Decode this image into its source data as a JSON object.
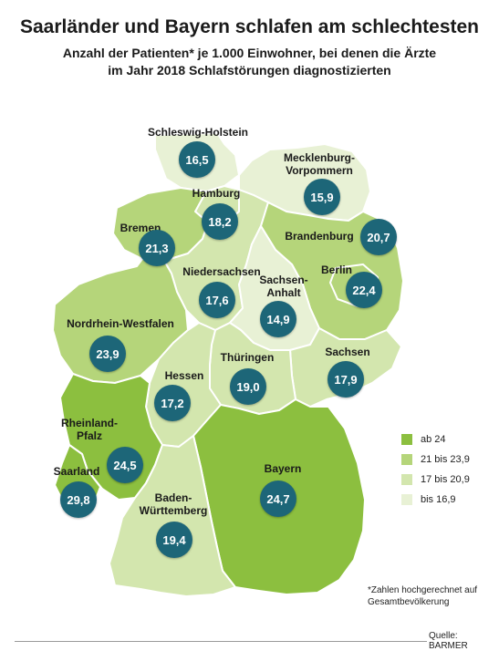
{
  "title": "Saarländer und Bayern schlafen am schlechtesten",
  "subtitle_line1": "Anzahl der Patienten* je 1.000 Einwohner, bei denen die Ärzte",
  "subtitle_line2": "im Jahr 2018 Schlafstörungen diagnostizierten",
  "colors": {
    "ab_24": "#8cbf3f",
    "21_bis_23_9": "#b5d57a",
    "17_bis_20_9": "#d3e6ae",
    "bis_16_9": "#e8f1d5",
    "bubble": "#1d6678"
  },
  "states": {
    "schleswig_holstein": {
      "name": "Schleswig-Holstein",
      "value": "16,5"
    },
    "mecklenburg_vorpommern": {
      "name1": "Mecklenburg-",
      "name2": "Vorpommern",
      "value": "15,9"
    },
    "hamburg": {
      "name": "Hamburg",
      "value": "18,2"
    },
    "bremen": {
      "name": "Bremen",
      "value": "21,3"
    },
    "brandenburg": {
      "name": "Brandenburg",
      "value": "20,7"
    },
    "berlin": {
      "name": "Berlin",
      "value": "22,4"
    },
    "niedersachsen": {
      "name": "Niedersachsen",
      "value": "17,6"
    },
    "sachsen_anhalt": {
      "name1": "Sachsen-",
      "name2": "Anhalt",
      "value": "14,9"
    },
    "nordrhein_westfalen": {
      "name": "Nordrhein-Westfalen",
      "value": "23,9"
    },
    "sachsen": {
      "name": "Sachsen",
      "value": "17,9"
    },
    "thueringen": {
      "name": "Thüringen",
      "value": "19,0"
    },
    "hessen": {
      "name": "Hessen",
      "value": "17,2"
    },
    "rheinland_pfalz": {
      "name1": "Rheinland-",
      "name2": "Pfalz",
      "value": "24,5"
    },
    "saarland": {
      "name": "Saarland",
      "value": "29,8"
    },
    "bayern": {
      "name": "Bayern",
      "value": "24,7"
    },
    "baden_wuerttemberg": {
      "name1": "Baden-",
      "name2": "Württemberg",
      "value": "19,4"
    }
  },
  "legend": [
    {
      "label": "ab 24",
      "color": "#8cbf3f"
    },
    {
      "label": "21 bis 23,9",
      "color": "#b5d57a"
    },
    {
      "label": "17 bis 20,9",
      "color": "#d3e6ae"
    },
    {
      "label": "bis 16,9",
      "color": "#e8f1d5"
    }
  ],
  "footnote_line1": "*Zahlen hochgerechnet auf",
  "footnote_line2": "Gesamtbevölkerung",
  "source": "Quelle: BARMER"
}
